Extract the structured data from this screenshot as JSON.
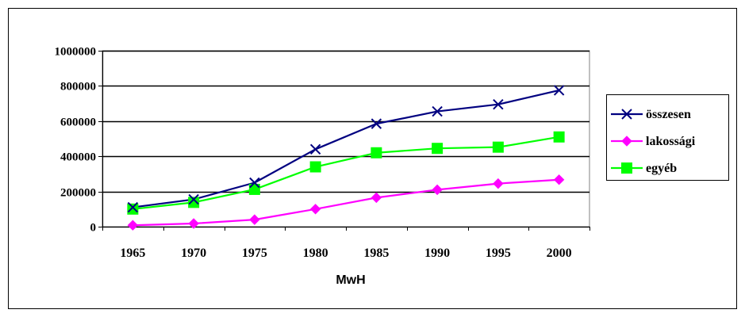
{
  "chart_data": {
    "type": "line",
    "title": "",
    "xlabel": "MwH",
    "ylabel": "",
    "categories": [
      "1965",
      "1970",
      "1975",
      "1980",
      "1985",
      "1990",
      "1995",
      "2000"
    ],
    "ylim": [
      0,
      1000000
    ],
    "yticks": [
      "0",
      "200000",
      "400000",
      "600000",
      "800000",
      "1000000"
    ],
    "grid": true,
    "legend_position": "right",
    "series": [
      {
        "name": "összesen",
        "color": "#000080",
        "marker": "x-mark",
        "values": [
          110000,
          155000,
          250000,
          440000,
          585000,
          655000,
          695000,
          775000
        ]
      },
      {
        "name": "lakossági",
        "color": "#ff00ff",
        "marker": "diamond",
        "values": [
          8000,
          18000,
          40000,
          100000,
          165000,
          210000,
          245000,
          267000
        ]
      },
      {
        "name": "egyéb",
        "color": "#00ff00",
        "marker": "square",
        "values": [
          100000,
          138000,
          212000,
          340000,
          420000,
          445000,
          452000,
          510000
        ]
      }
    ]
  }
}
